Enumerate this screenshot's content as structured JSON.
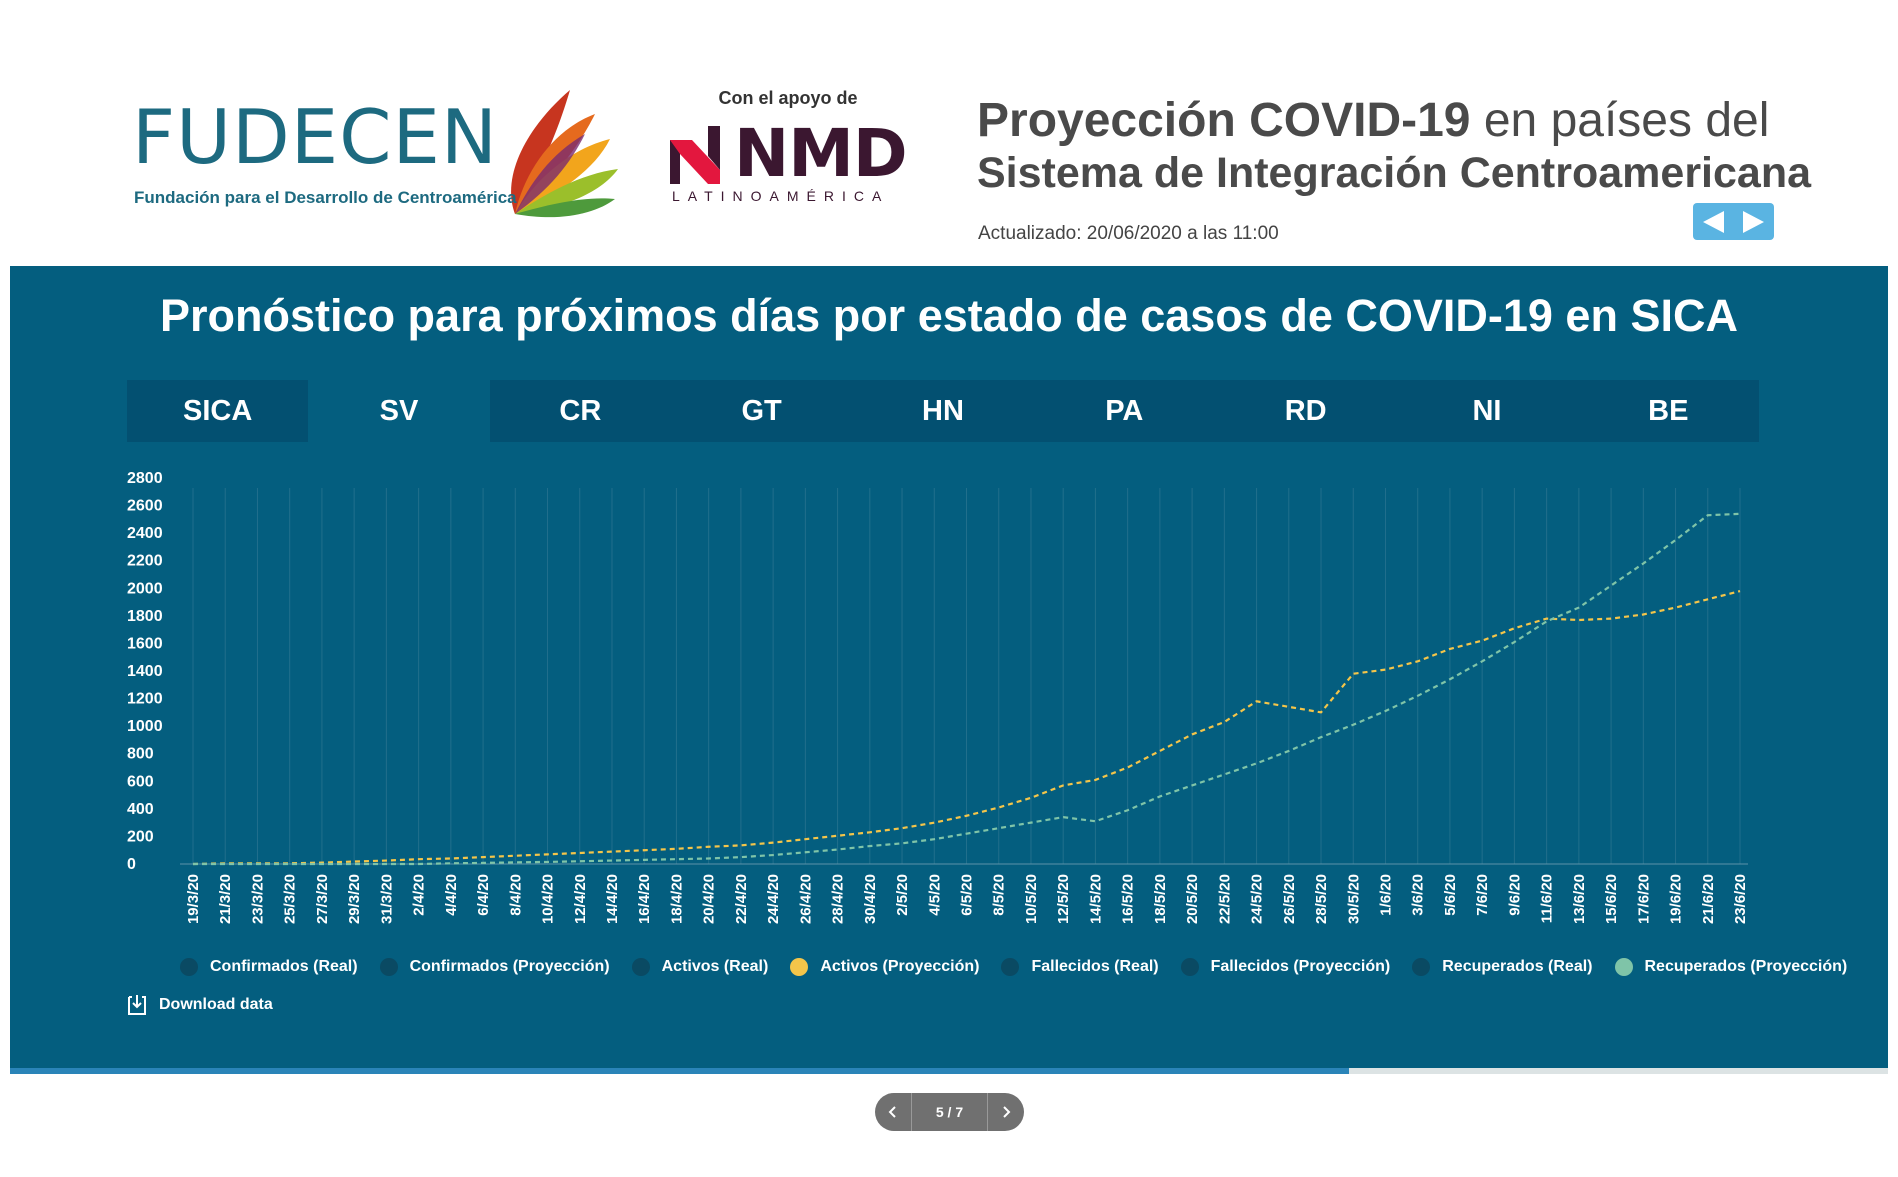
{
  "header": {
    "org_name": "FUDECEN",
    "org_subtitle": "Fundación para el Desarrollo de Centroamérica",
    "support_text": "Con el apoyo de",
    "partner_name": "NMD",
    "partner_subtitle": "LATINOAMÉRICA",
    "title_bold": "Proyección COVID-19",
    "title_rest": " en países del",
    "title_line2": "Sistema de Integración Centroamericana",
    "updated": "Actualizado: 20/06/2020 a las 11:00",
    "nav_prev_icon": "triangle-left-icon",
    "nav_next_icon": "triangle-right-icon"
  },
  "panel": {
    "title": "Pronóstico para próximos días por estado de casos de COVID-19 en SICA",
    "tabs": [
      {
        "label": "SICA",
        "active": false
      },
      {
        "label": "SV",
        "active": true
      },
      {
        "label": "CR",
        "active": false
      },
      {
        "label": "GT",
        "active": false
      },
      {
        "label": "HN",
        "active": false
      },
      {
        "label": "PA",
        "active": false
      },
      {
        "label": "RD",
        "active": false
      },
      {
        "label": "NI",
        "active": false
      },
      {
        "label": "BE",
        "active": false
      }
    ],
    "legend": [
      {
        "label": "Confirmados (Real)",
        "color": "#0a4a63"
      },
      {
        "label": "Confirmados (Proyección)",
        "color": "#0a4a63"
      },
      {
        "label": "Activos (Real)",
        "color": "#0a4a63"
      },
      {
        "label": "Activos (Proyección)",
        "color": "#f4c54a"
      },
      {
        "label": "Fallecidos (Real)",
        "color": "#0a4a63"
      },
      {
        "label": "Fallecidos (Proyección)",
        "color": "#0a4a63"
      },
      {
        "label": "Recuperados (Real)",
        "color": "#0a4a63"
      },
      {
        "label": "Recuperados (Proyección)",
        "color": "#7fc4a8"
      }
    ],
    "download_label": "Download data",
    "download_icon": "download-icon"
  },
  "colors": {
    "panel_bg": "#045e7f",
    "tab_bar_bg": "#035071",
    "activos_proyeccion": "#f4c54a",
    "recuperados_proyeccion": "#7fc4a8",
    "nav_arrows_bg": "#5ab4e2"
  },
  "pager": {
    "label": "5 / 7",
    "progress": 0.713,
    "prev_icon": "chevron-left-icon",
    "next_icon": "chevron-right-icon"
  },
  "chart_data": {
    "type": "line",
    "title": "",
    "xlabel": "",
    "ylabel": "",
    "ylim": [
      0,
      2800
    ],
    "y_ticks": [
      0,
      200,
      400,
      600,
      800,
      1000,
      1200,
      1400,
      1600,
      1800,
      2000,
      2200,
      2400,
      2600,
      2800
    ],
    "x_tick_labels": [
      "19/3/20",
      "21/3/20",
      "23/3/20",
      "25/3/20",
      "27/3/20",
      "29/3/20",
      "31/3/20",
      "2/4/20",
      "4/4/20",
      "6/4/20",
      "8/4/20",
      "10/4/20",
      "12/4/20",
      "14/4/20",
      "16/4/20",
      "18/4/20",
      "20/4/20",
      "22/4/20",
      "24/4/20",
      "26/4/20",
      "28/4/20",
      "30/4/20",
      "2/5/20",
      "4/5/20",
      "6/5/20",
      "8/5/20",
      "10/5/20",
      "12/5/20",
      "14/5/20",
      "16/5/20",
      "18/5/20",
      "20/5/20",
      "22/5/20",
      "24/5/20",
      "26/5/20",
      "28/5/20",
      "30/5/20",
      "1/6/20",
      "3/6/20",
      "5/6/20",
      "7/6/20",
      "9/6/20",
      "11/6/20",
      "13/6/20",
      "15/6/20",
      "17/6/20",
      "19/6/20",
      "21/6/20",
      "23/6/20"
    ],
    "grid": true,
    "series": [
      {
        "name": "Activos (Proyección)",
        "color": "#f4c54a",
        "dashed": true,
        "values": [
          0,
          5,
          5,
          5,
          10,
          18,
          25,
          35,
          40,
          50,
          60,
          70,
          80,
          90,
          100,
          110,
          125,
          135,
          155,
          180,
          205,
          230,
          260,
          300,
          350,
          410,
          480,
          570,
          610,
          700,
          820,
          940,
          1030,
          1180,
          1140,
          1100,
          1380,
          1410,
          1470,
          1560,
          1620,
          1710,
          1780,
          1770,
          1780,
          1810,
          1860,
          1920,
          1980
        ]
      },
      {
        "name": "Recuperados (Proyección)",
        "color": "#7fc4a8",
        "dashed": true,
        "values": [
          0,
          0,
          0,
          0,
          0,
          0,
          0,
          0,
          5,
          8,
          12,
          15,
          20,
          25,
          30,
          35,
          40,
          50,
          65,
          85,
          105,
          130,
          150,
          180,
          220,
          260,
          300,
          340,
          310,
          390,
          490,
          570,
          650,
          730,
          820,
          920,
          1010,
          1110,
          1220,
          1340,
          1470,
          1610,
          1760,
          1860,
          2020,
          2180,
          2350,
          2530,
          2540
        ]
      }
    ]
  }
}
